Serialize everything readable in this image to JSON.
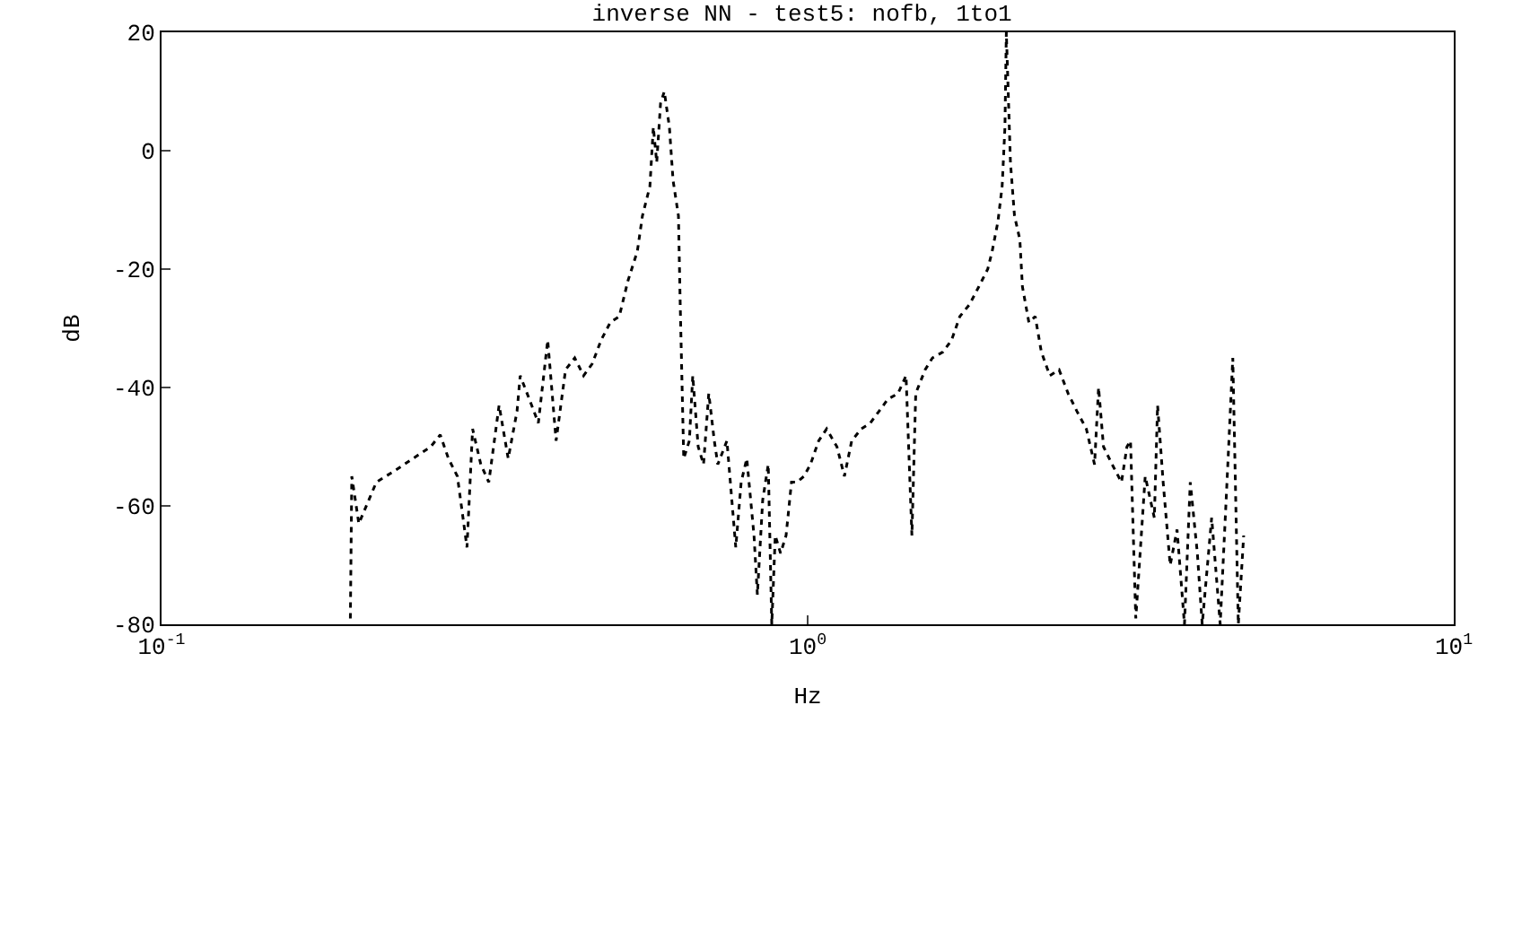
{
  "chart_data": {
    "type": "line",
    "title": "inverse NN - test5: nofb, 1to1",
    "xlabel": "Hz",
    "ylabel": "dB",
    "log": "x",
    "xlim": [
      0.1,
      10
    ],
    "ylim": [
      -80,
      20
    ],
    "xticks": [
      {
        "value": 0.1,
        "label": "10$^{-1}$"
      },
      {
        "value": 1,
        "label": "10$^{0}$"
      },
      {
        "value": 10,
        "label": "10$^{1}$"
      }
    ],
    "yticks": [
      -80,
      -60,
      -40,
      -20,
      0,
      20
    ],
    "marker": "none",
    "line_style": "dotted",
    "series": [
      {
        "color": "#000000",
        "x": [
          0.196,
          0.197,
          0.202,
          0.215,
          0.23,
          0.245,
          0.261,
          0.27,
          0.278,
          0.287,
          0.297,
          0.303,
          0.312,
          0.321,
          0.333,
          0.344,
          0.355,
          0.359,
          0.371,
          0.383,
          0.396,
          0.408,
          0.422,
          0.436,
          0.45,
          0.464,
          0.479,
          0.495,
          0.511,
          0.527,
          0.545,
          0.555,
          0.57,
          0.577,
          0.584,
          0.592,
          0.6,
          0.611,
          0.619,
          0.631,
          0.635,
          0.643,
          0.656,
          0.664,
          0.677,
          0.69,
          0.703,
          0.717,
          0.726,
          0.75,
          0.774,
          0.789,
          0.805,
          0.826,
          0.836,
          0.852,
          0.869,
          0.88,
          0.891,
          0.908,
          0.926,
          0.944,
          0.962,
          0.987,
          1.01,
          1.04,
          1.07,
          1.11,
          1.14,
          1.17,
          1.21,
          1.25,
          1.29,
          1.33,
          1.38,
          1.42,
          1.45,
          1.47,
          1.52,
          1.56,
          1.62,
          1.67,
          1.72,
          1.78,
          1.84,
          1.9,
          1.93,
          1.97,
          2.0,
          2.02,
          2.03,
          2.06,
          2.09,
          2.13,
          2.15,
          2.2,
          2.25,
          2.3,
          2.37,
          2.45,
          2.53,
          2.61,
          2.7,
          2.78,
          2.82,
          2.87,
          2.96,
          3.06,
          3.12,
          3.16,
          3.22,
          3.33,
          3.44,
          3.48,
          3.55,
          3.64,
          3.73,
          3.83,
          3.91,
          4.01,
          4.08,
          4.22,
          4.35,
          4.47,
          4.55,
          4.64,
          4.73
        ],
        "values": [
          -79,
          -55,
          -63,
          -56,
          -54,
          -52,
          -50,
          -48,
          -52,
          -55,
          -67,
          -47,
          -53,
          -56,
          -43,
          -52,
          -44,
          -38,
          -42,
          -46,
          -32,
          -49,
          -37,
          -35,
          -38,
          -36,
          -32,
          -29,
          -28,
          -22,
          -17,
          -11,
          -6,
          4,
          -2,
          8,
          10,
          4,
          -5,
          -11,
          -26,
          -52,
          -49,
          -38,
          -50,
          -53,
          -41,
          -49,
          -53,
          -49,
          -67,
          -56,
          -52,
          -65,
          -75,
          -59,
          -53,
          -80,
          -65,
          -68,
          -65,
          -56,
          -56,
          -55,
          -53,
          -49,
          -47,
          -50,
          -55,
          -49,
          -47,
          -46,
          -44,
          -42,
          -41,
          -38,
          -65,
          -41,
          -37,
          -35,
          -34,
          -32,
          -28,
          -26,
          -23,
          -20,
          -17,
          -12,
          -6,
          4,
          20,
          -2,
          -11,
          -15,
          -23,
          -29,
          -28,
          -34,
          -38,
          -37,
          -41,
          -44,
          -47,
          -53,
          -40,
          -50,
          -53,
          -56,
          -50,
          -49,
          -79,
          -55,
          -62,
          -43,
          -56,
          -70,
          -64,
          -80,
          -56,
          -68,
          -80,
          -62,
          -80,
          -53,
          -35,
          -80,
          -65
        ]
      }
    ]
  }
}
